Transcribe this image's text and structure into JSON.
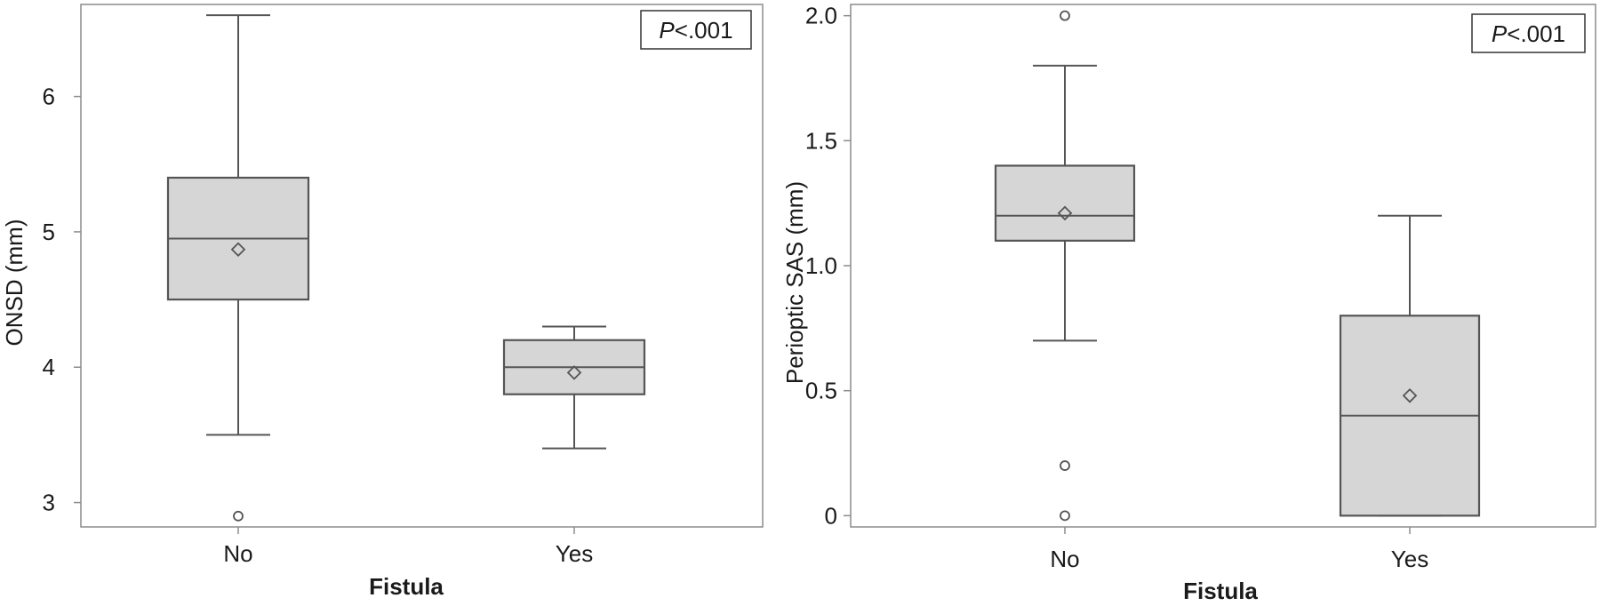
{
  "chart_data": [
    {
      "type": "box",
      "xlabel": "Fistula",
      "ylabel": "ONSD (mm)",
      "annotation": {
        "italic": "P",
        "rest": "<.001"
      },
      "ylim": [
        2.82,
        6.68
      ],
      "yticks": [
        {
          "v": 3,
          "label": "3"
        },
        {
          "v": 4,
          "label": "4"
        },
        {
          "v": 5,
          "label": "5"
        },
        {
          "v": 6,
          "label": "6"
        }
      ],
      "categories": [
        "No",
        "Yes"
      ],
      "boxes": [
        {
          "category": "No",
          "whisker_low": 3.5,
          "q1": 4.5,
          "median": 4.95,
          "q3": 5.4,
          "whisker_high": 6.6,
          "mean": 4.87,
          "outliers": [
            2.9
          ]
        },
        {
          "category": "Yes",
          "whisker_low": 3.4,
          "q1": 3.8,
          "median": 4.0,
          "q3": 4.2,
          "whisker_high": 4.3,
          "mean": 3.96,
          "outliers": []
        }
      ],
      "colors": {
        "box_fill": "#d6d6d6",
        "stroke": "#555555",
        "frame": "#8c8c8c"
      }
    },
    {
      "type": "box",
      "xlabel": "Fistula",
      "ylabel": "Perioptic SAS (mm)",
      "annotation": {
        "italic": "P",
        "rest": "<.001"
      },
      "ylim": [
        -0.045,
        2.045
      ],
      "yticks": [
        {
          "v": 0,
          "label": "0"
        },
        {
          "v": 0.5,
          "label": "0.5"
        },
        {
          "v": 1.0,
          "label": "1.0"
        },
        {
          "v": 1.5,
          "label": "1.5"
        },
        {
          "v": 2.0,
          "label": "2.0"
        }
      ],
      "categories": [
        "No",
        "Yes"
      ],
      "boxes": [
        {
          "category": "No",
          "whisker_low": 0.7,
          "q1": 1.1,
          "median": 1.2,
          "q3": 1.4,
          "whisker_high": 1.8,
          "mean": 1.21,
          "outliers": [
            2.0,
            0.2,
            0.0
          ]
        },
        {
          "category": "Yes",
          "whisker_low": 0.0,
          "q1": 0.0,
          "median": 0.4,
          "q3": 0.8,
          "whisker_high": 1.2,
          "mean": 0.48,
          "outliers": []
        }
      ],
      "colors": {
        "box_fill": "#d6d6d6",
        "stroke": "#555555",
        "frame": "#8c8c8c"
      }
    }
  ]
}
